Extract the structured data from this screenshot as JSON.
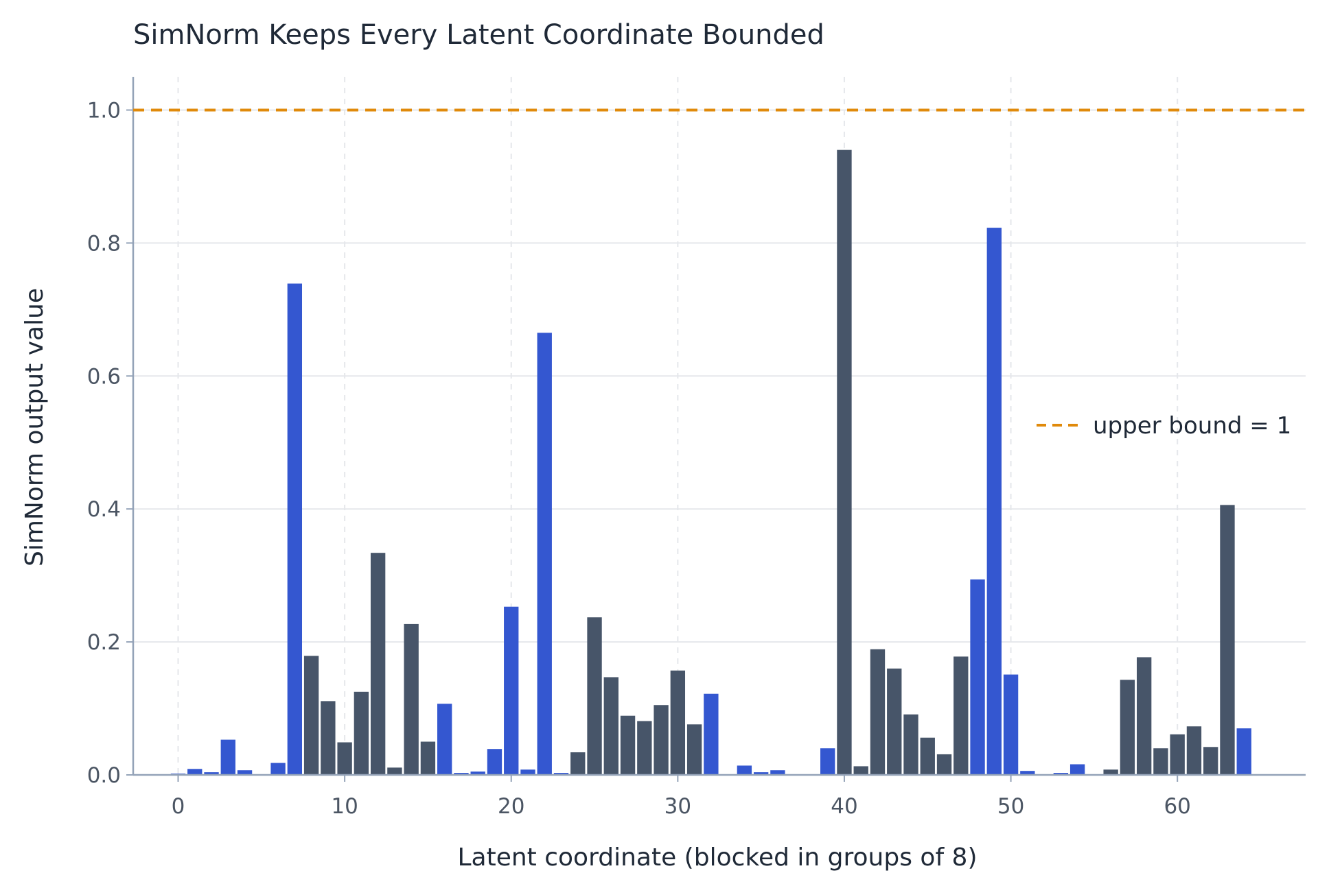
{
  "chart_data": {
    "type": "bar",
    "title": "SimNorm Keeps Every Latent Coordinate Bounded",
    "xlabel": "Latent coordinate (blocked in groups of 8)",
    "ylabel": "SimNorm output value",
    "xlim": [
      -2.7,
      67.7
    ],
    "ylim": [
      0,
      1.05
    ],
    "x_ticks": [
      0,
      10,
      20,
      30,
      40,
      50,
      60
    ],
    "y_ticks": [
      0.0,
      0.2,
      0.4,
      0.6,
      0.8,
      1.0
    ],
    "y_tick_labels": [
      "0.0",
      "0.2",
      "0.4",
      "0.6",
      "0.8",
      "1.0"
    ],
    "grid": true,
    "colors": {
      "even_group": "#3457d0",
      "odd_group": "#475569",
      "bound": "#e08a0b",
      "grid": "#e5e7eb",
      "axis": "#94a3b8"
    },
    "block_size": 8,
    "values": [
      0.002,
      0.009,
      0.004,
      0.053,
      0.007,
      0.001,
      0.018,
      0.739,
      0.179,
      0.111,
      0.049,
      0.125,
      0.334,
      0.011,
      0.227,
      0.05,
      0.107,
      0.003,
      0.005,
      0.039,
      0.253,
      0.008,
      0.665,
      0.003,
      0.034,
      0.237,
      0.147,
      0.089,
      0.081,
      0.105,
      0.157,
      0.076,
      0.122,
      0.001,
      0.014,
      0.004,
      0.007,
      0.001,
      0.001,
      0.04,
      0.94,
      0.013,
      0.189,
      0.16,
      0.091,
      0.056,
      0.031,
      0.178,
      0.294,
      0.823,
      0.151,
      0.006,
      0.001,
      0.003,
      0.016,
      0.001,
      0.008,
      0.143,
      0.177,
      0.04,
      0.061,
      0.073,
      0.042,
      0.406,
      0.07
    ],
    "reference_line": {
      "y": 1.0,
      "label": "upper bound = 1"
    },
    "legend_position": "right"
  }
}
